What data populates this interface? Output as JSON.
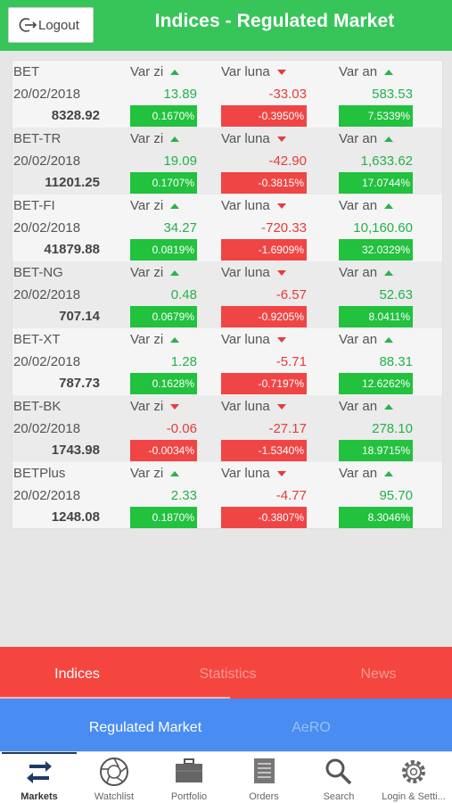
{
  "header": {
    "logout_label": "Logout",
    "title": "Indices - Regulated Market"
  },
  "indices": [
    {
      "name": "BET",
      "date": "20/02/2018",
      "price": "8328.92",
      "day": {
        "label": "Var zi",
        "dir": "up",
        "val": "13.89",
        "pct": "0.1670%",
        "sign": "pos"
      },
      "month": {
        "label": "Var luna",
        "dir": "down",
        "val": "-33.03",
        "pct": "-0.3950%",
        "sign": "neg"
      },
      "year": {
        "label": "Var an",
        "dir": "up",
        "val": "583.53",
        "pct": "7.5339%",
        "sign": "pos"
      }
    },
    {
      "name": "BET-TR",
      "date": "20/02/2018",
      "price": "11201.25",
      "day": {
        "label": "Var zi",
        "dir": "up",
        "val": "19.09",
        "pct": "0.1707%",
        "sign": "pos"
      },
      "month": {
        "label": "Var luna",
        "dir": "down",
        "val": "-42.90",
        "pct": "-0.3815%",
        "sign": "neg"
      },
      "year": {
        "label": "Var an",
        "dir": "up",
        "val": "1,633.62",
        "pct": "17.0744%",
        "sign": "pos"
      }
    },
    {
      "name": "BET-FI",
      "date": "20/02/2018",
      "price": "41879.88",
      "day": {
        "label": "Var zi",
        "dir": "up",
        "val": "34.27",
        "pct": "0.0819%",
        "sign": "pos"
      },
      "month": {
        "label": "Var luna",
        "dir": "down",
        "val": "-720.33",
        "pct": "-1.6909%",
        "sign": "neg"
      },
      "year": {
        "label": "Var an",
        "dir": "up",
        "val": "10,160.60",
        "pct": "32.0329%",
        "sign": "pos"
      }
    },
    {
      "name": "BET-NG",
      "date": "20/02/2018",
      "price": "707.14",
      "day": {
        "label": "Var zi",
        "dir": "up",
        "val": "0.48",
        "pct": "0.0679%",
        "sign": "pos"
      },
      "month": {
        "label": "Var luna",
        "dir": "down",
        "val": "-6.57",
        "pct": "-0.9205%",
        "sign": "neg"
      },
      "year": {
        "label": "Var an",
        "dir": "up",
        "val": "52.63",
        "pct": "8.0411%",
        "sign": "pos"
      }
    },
    {
      "name": "BET-XT",
      "date": "20/02/2018",
      "price": "787.73",
      "day": {
        "label": "Var zi",
        "dir": "up",
        "val": "1.28",
        "pct": "0.1628%",
        "sign": "pos"
      },
      "month": {
        "label": "Var luna",
        "dir": "down",
        "val": "-5.71",
        "pct": "-0.7197%",
        "sign": "neg"
      },
      "year": {
        "label": "Var an",
        "dir": "up",
        "val": "88.31",
        "pct": "12.6262%",
        "sign": "pos"
      }
    },
    {
      "name": "BET-BK",
      "date": "20/02/2018",
      "price": "1743.98",
      "day": {
        "label": "Var zi",
        "dir": "down",
        "val": "-0.06",
        "pct": "-0.0034%",
        "sign": "neg"
      },
      "month": {
        "label": "Var luna",
        "dir": "down",
        "val": "-27.17",
        "pct": "-1.5340%",
        "sign": "neg"
      },
      "year": {
        "label": "Var an",
        "dir": "up",
        "val": "278.10",
        "pct": "18.9715%",
        "sign": "pos"
      }
    },
    {
      "name": "BETPlus",
      "date": "20/02/2018",
      "price": "1248.08",
      "day": {
        "label": "Var zi",
        "dir": "up",
        "val": "2.33",
        "pct": "0.1870%",
        "sign": "pos"
      },
      "month": {
        "label": "Var luna",
        "dir": "down",
        "val": "-4.77",
        "pct": "-0.3807%",
        "sign": "neg"
      },
      "year": {
        "label": "Var an",
        "dir": "up",
        "val": "95.70",
        "pct": "8.3046%",
        "sign": "pos"
      }
    }
  ],
  "tabs_primary": [
    {
      "label": "Indices",
      "active": true
    },
    {
      "label": "Statistics",
      "active": false
    },
    {
      "label": "News",
      "active": false
    }
  ],
  "tabs_secondary": [
    {
      "label": "Regulated Market",
      "active": true
    },
    {
      "label": "AeRO",
      "active": false
    }
  ],
  "bottom_nav": [
    {
      "label": "Markets",
      "icon": "arrows-icon",
      "active": true
    },
    {
      "label": "Watchlist",
      "icon": "aperture-icon",
      "active": false
    },
    {
      "label": "Portfolio",
      "icon": "briefcase-icon",
      "active": false
    },
    {
      "label": "Orders",
      "icon": "document-icon",
      "active": false
    },
    {
      "label": "Search",
      "icon": "search-icon",
      "active": false
    },
    {
      "label": "Login & Setti...",
      "icon": "gear-icon",
      "active": false
    }
  ],
  "colors": {
    "header_green": "#37c55a",
    "positive": "#22c13e",
    "negative": "#f04545",
    "tabbar_red": "#f4463f",
    "tabbar_blue": "#4a8df2"
  }
}
